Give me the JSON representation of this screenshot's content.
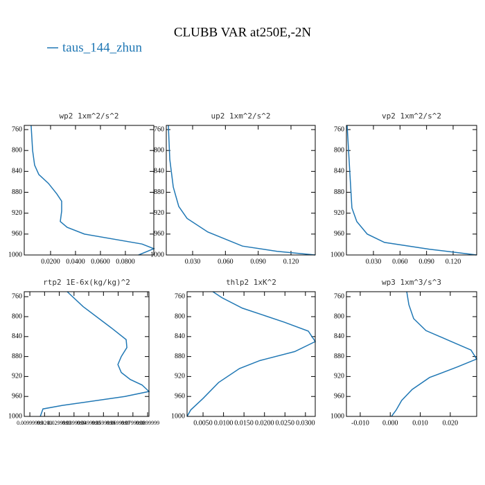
{
  "title": "CLUBB VAR at250E,-2N",
  "legend": "taus_144_zhun",
  "chart_data": [
    {
      "type": "line",
      "title": "wp2   1xm^2/s^2",
      "series": [
        {
          "color": "#1f77b4",
          "x": [
            0.0044,
            0.0056,
            0.0072,
            0.0106,
            0.0183,
            0.025,
            0.0289,
            0.0289,
            0.0278,
            0.0333,
            0.0472,
            0.0933,
            0.1028,
            0.0906
          ],
          "y": [
            752,
            800,
            828,
            846,
            863,
            883,
            897,
            916,
            936,
            947,
            960,
            979,
            988,
            1000
          ]
        }
      ],
      "xlim": [
        -0.0011,
        0.1028
      ],
      "ylim": [
        1000,
        752
      ],
      "xticks": [
        {
          "value": 0.02,
          "label": "0.0200"
        },
        {
          "value": 0.04,
          "label": "0.0400"
        },
        {
          "value": 0.06,
          "label": "0.0600"
        },
        {
          "value": 0.08,
          "label": "0.0800"
        }
      ],
      "yticks": [
        760,
        800,
        840,
        880,
        920,
        960,
        1000
      ]
    },
    {
      "type": "line",
      "title": "up2   1xm^2/s^2",
      "series": [
        {
          "color": "#1f77b4",
          "x": [
            0.0078,
            0.0091,
            0.0123,
            0.0173,
            0.0249,
            0.0439,
            0.0756,
            0.1073,
            0.1422
          ],
          "y": [
            752,
            817,
            870,
            907,
            930,
            956,
            983,
            993,
            1000
          ]
        }
      ],
      "xlim": [
        0.0059,
        0.1422
      ],
      "ylim": [
        1000,
        752
      ],
      "xticks": [
        {
          "value": 0.03,
          "label": "0.030"
        },
        {
          "value": 0.06,
          "label": "0.060"
        },
        {
          "value": 0.09,
          "label": "0.090"
        },
        {
          "value": 0.12,
          "label": "0.120"
        }
      ],
      "yticks": [
        760,
        800,
        840,
        880,
        920,
        960,
        1000
      ]
    },
    {
      "type": "line",
      "title": "vp2   1xm^2/s^2",
      "series": [
        {
          "color": "#1f77b4",
          "x": [
            0.0003,
            0.0034,
            0.0057,
            0.0112,
            0.023,
            0.0425,
            0.0934,
            0.1466
          ],
          "y": [
            752,
            844,
            910,
            936,
            960,
            976,
            989,
            1000
          ]
        }
      ],
      "xlim": [
        -0.0005,
        0.1466
      ],
      "ylim": [
        1000,
        752
      ],
      "xticks": [
        {
          "value": 0.03,
          "label": "0.030"
        },
        {
          "value": 0.06,
          "label": "0.060"
        },
        {
          "value": 0.09,
          "label": "0.090"
        },
        {
          "value": 0.12,
          "label": "0.120"
        }
      ],
      "yticks": [
        760,
        800,
        840,
        880,
        920,
        960,
        1000
      ]
    },
    {
      "type": "line",
      "title": "rtp2   1E-6x(kg/kg)^2",
      "series": [
        {
          "color": "#1f77b4",
          "x": [
            0.0354,
            0.0462,
            0.0651,
            0.0754,
            0.0759,
            0.0721,
            0.0698,
            0.0721,
            0.0782,
            0.0862,
            0.0909,
            0.0745,
            0.0321,
            0.0189,
            0.0171
          ],
          "y": [
            750,
            780,
            822,
            846,
            862,
            880,
            896,
            912,
            926,
            937,
            950,
            960,
            978,
            985,
            1000
          ]
        }
      ],
      "xlim": [
        0.0062,
        0.0909
      ],
      "ylim": [
        1000,
        750
      ],
      "xticks": [
        {
          "value": 0.01,
          "label": "0.00999999"
        },
        {
          "value": 0.02,
          "label": "0.0200"
        },
        {
          "value": 0.03,
          "label": "0.0299999"
        },
        {
          "value": 0.04,
          "label": "0.0399999"
        },
        {
          "value": 0.05,
          "label": "0.0499999"
        },
        {
          "value": 0.06,
          "label": "0.0599999"
        },
        {
          "value": 0.07,
          "label": "0.0699999"
        },
        {
          "value": 0.08,
          "label": "0.0799999"
        },
        {
          "value": 0.09,
          "label": "0.0899999"
        }
      ],
      "yticks": [
        760,
        800,
        840,
        880,
        920,
        960,
        1000
      ]
    },
    {
      "type": "line",
      "title": "thlp2   1xK^2",
      "series": [
        {
          "color": "#1f77b4",
          "x": [
            0.0074,
            0.0096,
            0.0146,
            0.0197,
            0.0248,
            0.0307,
            0.0324,
            0.0274,
            0.0189,
            0.0139,
            0.0088,
            0.005,
            0.002,
            0.0011
          ],
          "y": [
            750,
            762,
            783,
            797,
            811,
            829,
            850,
            870,
            888,
            904,
            932,
            964,
            987,
            1000
          ]
        }
      ],
      "xlim": [
        0.0011,
        0.0324
      ],
      "ylim": [
        1000,
        750
      ],
      "xticks": [
        {
          "value": 0.005,
          "label": "0.0050"
        },
        {
          "value": 0.01,
          "label": "0.0100"
        },
        {
          "value": 0.015,
          "label": "0.0150"
        },
        {
          "value": 0.02,
          "label": "0.0200"
        },
        {
          "value": 0.025,
          "label": "0.0250"
        },
        {
          "value": 0.03,
          "label": "0.0300"
        }
      ],
      "yticks": [
        760,
        800,
        840,
        880,
        920,
        960,
        1000
      ]
    },
    {
      "type": "line",
      "title": "wp3   1xm^3/s^3",
      "series": [
        {
          "color": "#1f77b4",
          "x": [
            0.0055,
            0.0062,
            0.0078,
            0.0119,
            0.02,
            0.0269,
            0.0288,
            0.0223,
            0.0131,
            0.0073,
            0.0038,
            0.002,
            0.0004
          ],
          "y": [
            750,
            776,
            804,
            828,
            849,
            867,
            885,
            901,
            922,
            946,
            968,
            987,
            1000
          ]
        }
      ],
      "xlim": [
        -0.0146,
        0.0288
      ],
      "ylim": [
        1000,
        750
      ],
      "xticks": [
        {
          "value": -0.01,
          "label": "-0.010"
        },
        {
          "value": 0,
          "label": "0.000"
        },
        {
          "value": 0.01,
          "label": "0.010"
        },
        {
          "value": 0.02,
          "label": "0.020"
        }
      ],
      "yticks": [
        760,
        800,
        840,
        880,
        920,
        960,
        1000
      ]
    }
  ]
}
